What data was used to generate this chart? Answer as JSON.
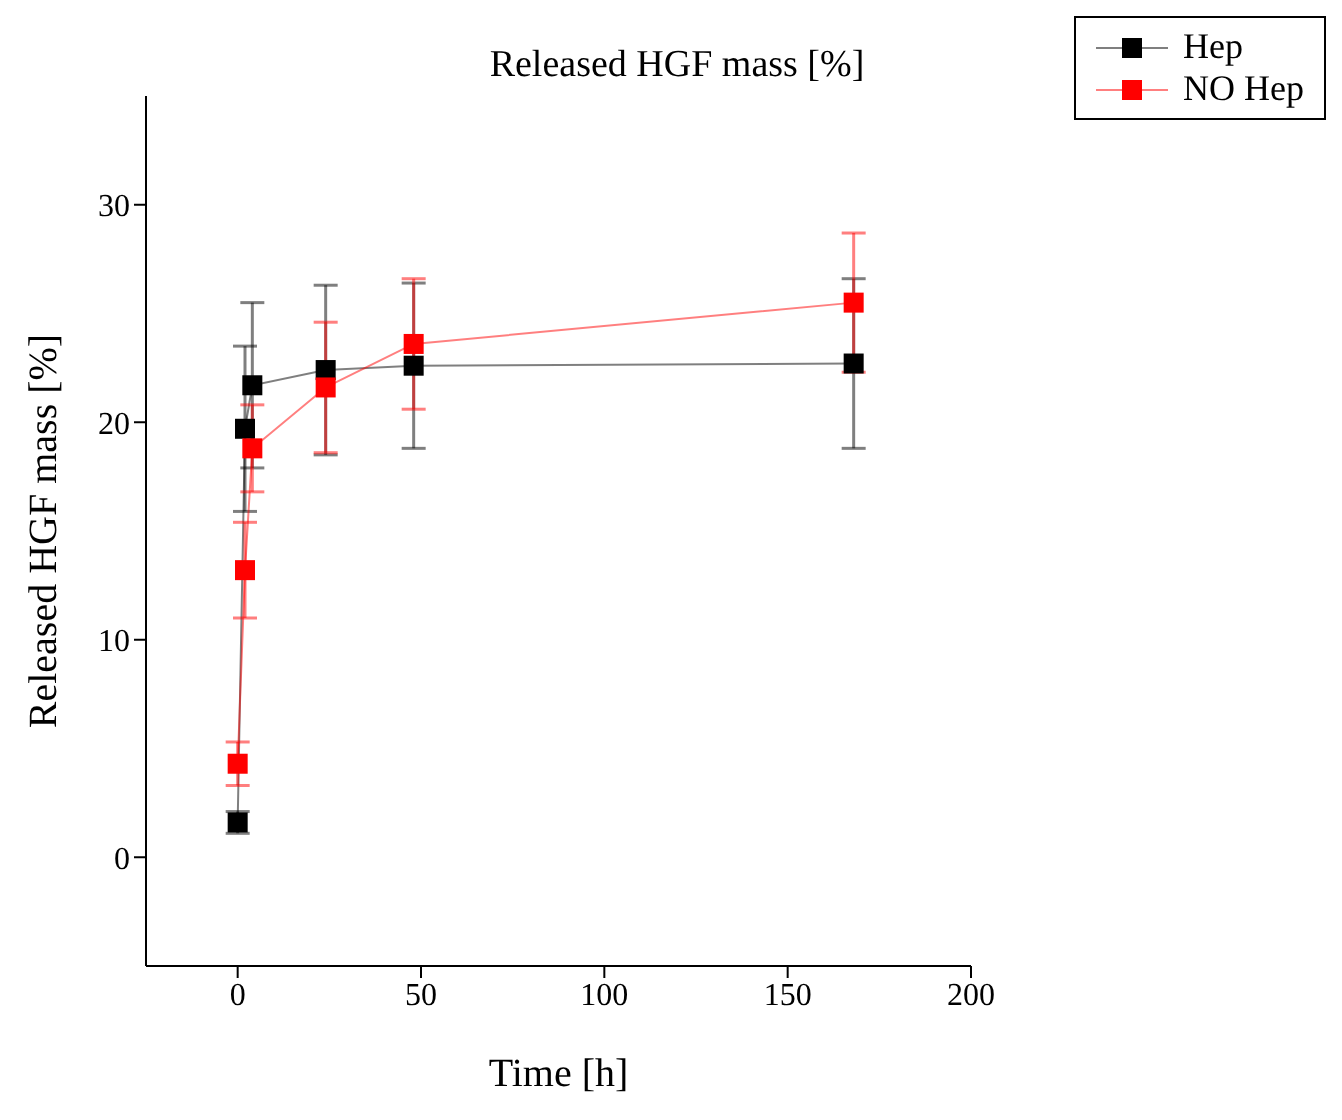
{
  "chart_data": {
    "type": "line",
    "title": "Released HGF mass [%]",
    "xlabel": "Time [h]",
    "ylabel": "Released HGF mass [%]",
    "x": [
      0,
      2,
      4,
      24,
      48,
      168
    ],
    "series": [
      {
        "name": "Hep",
        "color": "#000000",
        "values": [
          1.6,
          19.7,
          21.7,
          22.4,
          22.6,
          22.7
        ],
        "errors": [
          0.5,
          3.8,
          3.8,
          3.9,
          3.8,
          3.9
        ]
      },
      {
        "name": "NO Hep",
        "color": "#ff0000",
        "values": [
          4.3,
          13.2,
          18.8,
          21.6,
          23.6,
          25.5
        ],
        "errors": [
          1.0,
          2.2,
          2.0,
          3.0,
          3.0,
          3.2
        ]
      }
    ],
    "xlim": [
      -25,
      200
    ],
    "xticks": [
      0,
      50,
      100,
      150,
      200
    ],
    "ylim": [
      -5,
      35
    ],
    "yticks": [
      0,
      10,
      20,
      30
    ],
    "grid": false,
    "legend": "top right",
    "marker": "square",
    "line_style": "solid"
  }
}
